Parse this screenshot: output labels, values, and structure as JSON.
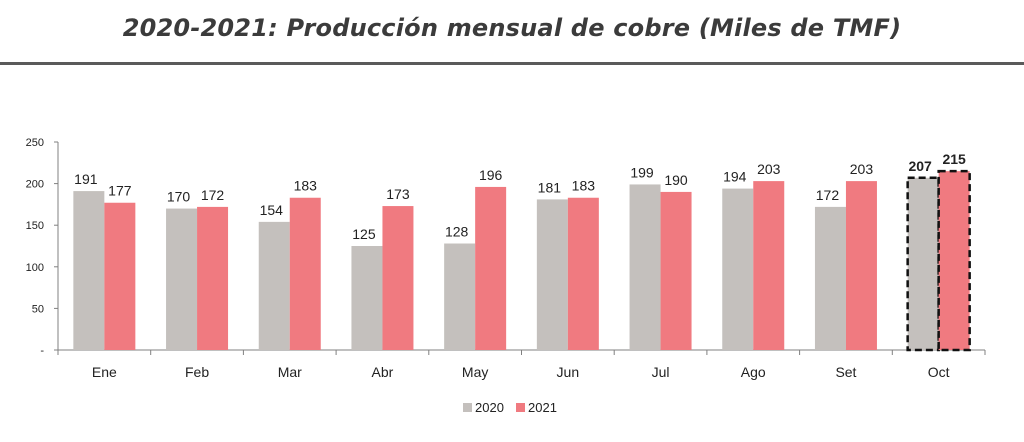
{
  "title": "2020-2021: Producción mensual de cobre (Miles de TMF)",
  "chart_data": {
    "type": "bar",
    "categories": [
      "Ene",
      "Feb",
      "Mar",
      "Abr",
      "May",
      "Jun",
      "Jul",
      "Ago",
      "Set",
      "Oct"
    ],
    "series": [
      {
        "name": "2020",
        "color": "#c4c0bd",
        "values": [
          191,
          170,
          154,
          125,
          128,
          181,
          199,
          194,
          172,
          207
        ]
      },
      {
        "name": "2021",
        "color": "#f07a80",
        "values": [
          177,
          172,
          183,
          173,
          196,
          183,
          190,
          203,
          203,
          215
        ]
      }
    ],
    "ylim": [
      0,
      250
    ],
    "yticks": [
      "-",
      "50",
      "100",
      "150",
      "200",
      "250"
    ],
    "highlighted_category": "Oct",
    "legend_position": "bottom-center",
    "grid": false
  }
}
